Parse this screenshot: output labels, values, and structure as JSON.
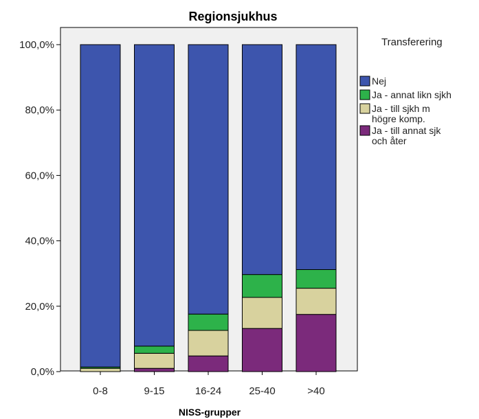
{
  "chart_data": {
    "type": "bar",
    "stacked": true,
    "title": "Regionsjukhus",
    "xlabel": "NISS-grupper",
    "ylabel": "",
    "ylim": [
      0,
      100
    ],
    "yticks": [
      "0,0%",
      "20,0%",
      "40,0%",
      "60,0%",
      "80,0%",
      "100,0%"
    ],
    "ytick_values": [
      0,
      20,
      40,
      60,
      80,
      100
    ],
    "categories": [
      "0-8",
      "9-15",
      "16-24",
      "25-40",
      ">40"
    ],
    "legend_title": "Transferering",
    "legend_position": "right",
    "series": [
      {
        "name": "Ja - till annat sjk och åter",
        "legend_lines": [
          "Ja - till annat sjk",
          "och åter"
        ],
        "color": "#7b2a7b",
        "values": [
          0.0,
          1.0,
          4.8,
          13.2,
          17.5
        ]
      },
      {
        "name": "Ja - till sjkh m högre komp.",
        "legend_lines": [
          "Ja - till sjkh m",
          "högre komp."
        ],
        "color": "#d8d29e",
        "values": [
          1.0,
          4.6,
          7.8,
          9.5,
          8.0
        ]
      },
      {
        "name": "Ja - annat likn sjkh",
        "legend_lines": [
          "Ja - annat likn sjkh"
        ],
        "color": "#2db24a",
        "values": [
          0.4,
          2.2,
          5.0,
          7.0,
          5.7
        ]
      },
      {
        "name": "Nej",
        "legend_lines": [
          "Nej"
        ],
        "color": "#3d55ad",
        "values": [
          98.6,
          92.2,
          82.4,
          70.3,
          68.8
        ]
      }
    ],
    "legend_order": [
      "Nej",
      "Ja - annat likn sjkh",
      "Ja - till sjkh m högre komp.",
      "Ja - till annat sjk och åter"
    ]
  }
}
